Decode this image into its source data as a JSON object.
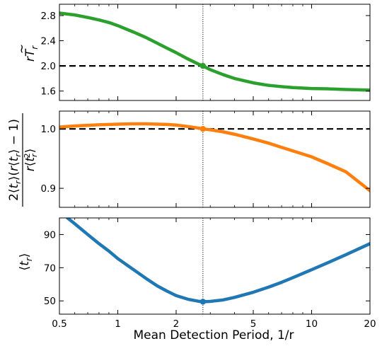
{
  "chart_data": [
    {
      "type": "line",
      "panel": "top",
      "ylabel": "rT̃ r",
      "ylabel_parts": {
        "r": "r",
        "T": "T",
        "tilde": "~",
        "sub": "r"
      },
      "xscale": "log",
      "xlim": [
        0.5,
        20
      ],
      "ylim": [
        1.45,
        2.98
      ],
      "yticks": [
        1.6,
        2.0,
        2.4,
        2.8
      ],
      "ytick_labels": [
        "1.6",
        "2.0",
        "2.4",
        "2.8"
      ],
      "reference_y": 2.0,
      "marker": {
        "x": 2.75,
        "y": 2.0
      },
      "color": "#2ca02c",
      "series": [
        {
          "x": [
            0.5,
            0.6,
            0.7,
            0.8,
            0.9,
            1.0,
            1.2,
            1.4,
            1.6,
            1.8,
            2.0,
            2.3,
            2.6,
            2.75,
            3.0,
            3.5,
            4.0,
            5.0,
            6.0,
            7.0,
            8.0,
            10.0,
            12.0,
            15.0,
            20.0
          ],
          "y": [
            2.84,
            2.81,
            2.77,
            2.73,
            2.69,
            2.64,
            2.54,
            2.45,
            2.36,
            2.28,
            2.21,
            2.11,
            2.03,
            2.0,
            1.94,
            1.86,
            1.8,
            1.73,
            1.69,
            1.67,
            1.655,
            1.64,
            1.635,
            1.625,
            1.615
          ]
        }
      ]
    },
    {
      "type": "line",
      "panel": "middle",
      "ylabel_numerator": "2⟨t r⟩(r⟨t r⟩ − 1)",
      "ylabel_denominator": "r⟨t r 2⟩",
      "ylabel_parts": {
        "two": "2",
        "lang": "⟨",
        "rang": "⟩",
        "t": "t",
        "sub": "r",
        "r": "r",
        "open": "(",
        "close": ")",
        "minus_one": " − 1",
        "sup2": "2"
      },
      "xscale": "log",
      "xlim": [
        0.5,
        20
      ],
      "ylim": [
        0.868,
        1.03
      ],
      "yticks": [
        0.9,
        1.0
      ],
      "ytick_labels": [
        "0.9",
        "1.0"
      ],
      "reference_y": 1.0,
      "marker": {
        "x": 2.75,
        "y": 1.0
      },
      "color": "#ff7f0e",
      "series": [
        {
          "x": [
            0.5,
            0.6,
            0.7,
            0.8,
            1.0,
            1.2,
            1.4,
            1.6,
            1.8,
            2.0,
            2.3,
            2.6,
            2.75,
            3.0,
            3.5,
            4.0,
            5.0,
            6.0,
            7.0,
            8.0,
            10.0,
            12.0,
            15.0,
            20.0
          ],
          "y": [
            1.003,
            1.005,
            1.006,
            1.007,
            1.008,
            1.0085,
            1.0085,
            1.008,
            1.0075,
            1.0065,
            1.004,
            1.0015,
            1.0,
            0.9985,
            0.995,
            0.991,
            0.983,
            0.976,
            0.969,
            0.963,
            0.953,
            0.942,
            0.928,
            0.896
          ]
        }
      ]
    },
    {
      "type": "line",
      "panel": "bottom",
      "ylabel": "⟨t r⟩",
      "ylabel_parts": {
        "lang": "⟨",
        "t": "t",
        "sub": "r",
        "rang": "⟩"
      },
      "xlabel": "Mean Detection Period, 1/r",
      "xscale": "log",
      "xlim": [
        0.5,
        20
      ],
      "ylim": [
        42,
        100
      ],
      "yticks": [
        50,
        70,
        90
      ],
      "ytick_labels": [
        "50",
        "70",
        "90"
      ],
      "xticks": [
        0.5,
        1,
        2,
        5,
        10,
        20
      ],
      "xtick_labels": [
        "0.5",
        "1",
        "2",
        "5",
        "10",
        "20"
      ],
      "marker": {
        "x": 2.75,
        "y": 49.5
      },
      "color": "#1f77b4",
      "series": [
        {
          "x": [
            0.55,
            0.6,
            0.7,
            0.8,
            0.9,
            1.0,
            1.2,
            1.4,
            1.6,
            1.8,
            2.0,
            2.3,
            2.6,
            2.75,
            3.0,
            3.5,
            4.0,
            5.0,
            6.0,
            7.0,
            8.0,
            10.0,
            12.0,
            15.0,
            20.0
          ],
          "y": [
            100,
            96.5,
            90,
            84.5,
            80,
            75.5,
            69,
            63.5,
            59,
            55.8,
            53.2,
            51,
            49.8,
            49.5,
            49.7,
            50.6,
            52.1,
            55.2,
            58.3,
            61.2,
            64,
            68.8,
            72.8,
            77.8,
            84.5
          ]
        }
      ]
    }
  ],
  "vertical_reference_x": 2.75
}
